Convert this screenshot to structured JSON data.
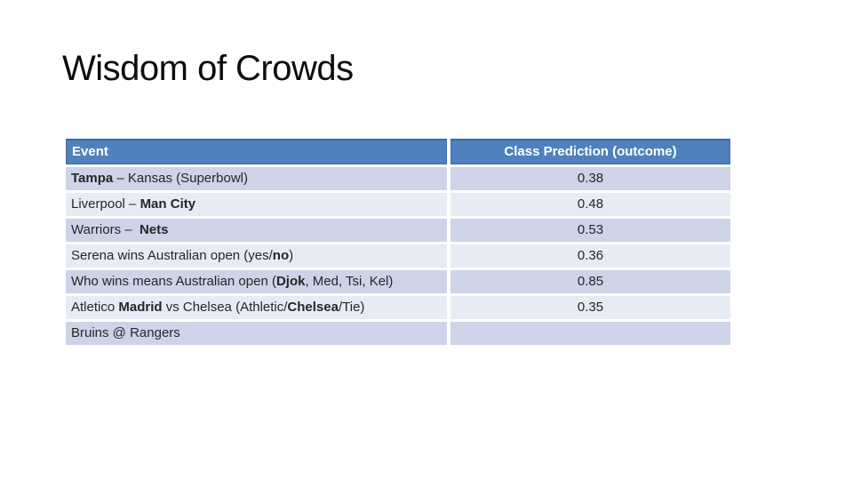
{
  "slide": {
    "title": "Wisdom of Crowds",
    "colors": {
      "header_bg": "#4F81BD",
      "header_text": "#FFFFFF",
      "header_border": "#3D6BA7",
      "row_odd_bg": "#CDD4E8",
      "row_even_bg": "#E7EBF4",
      "body_text": "#262626",
      "title_color": "#0d0d0d"
    },
    "table": {
      "columns": [
        "Event",
        "Class Prediction (outcome)"
      ],
      "rows": [
        {
          "event": [
            {
              "text": "Tampa",
              "bold": true
            },
            {
              "text": " – Kansas (Superbowl)",
              "bold": false
            }
          ],
          "prediction": "0.38"
        },
        {
          "event": [
            {
              "text": "Liverpool – ",
              "bold": false
            },
            {
              "text": "Man City",
              "bold": true
            }
          ],
          "prediction": "0.48"
        },
        {
          "event": [
            {
              "text": "Warriors –  ",
              "bold": false
            },
            {
              "text": "Nets",
              "bold": true
            }
          ],
          "prediction": "0.53"
        },
        {
          "event": [
            {
              "text": "Serena wins Australian open (yes/",
              "bold": false
            },
            {
              "text": "no",
              "bold": true
            },
            {
              "text": ")",
              "bold": false
            }
          ],
          "prediction": "0.36"
        },
        {
          "event": [
            {
              "text": "Who wins means Australian open (",
              "bold": false
            },
            {
              "text": "Djok",
              "bold": true
            },
            {
              "text": ", Med, Tsi, Kel)",
              "bold": false
            }
          ],
          "prediction": "0.85"
        },
        {
          "event": [
            {
              "text": "Atletico ",
              "bold": false
            },
            {
              "text": "Madrid",
              "bold": true
            },
            {
              "text": " vs Chelsea (Athletic/",
              "bold": false
            },
            {
              "text": "Chelsea",
              "bold": true
            },
            {
              "text": "/Tie)",
              "bold": false
            }
          ],
          "prediction": "0.35"
        },
        {
          "event": [
            {
              "text": "Bruins @ Rangers",
              "bold": false
            }
          ],
          "prediction": ""
        }
      ]
    }
  }
}
